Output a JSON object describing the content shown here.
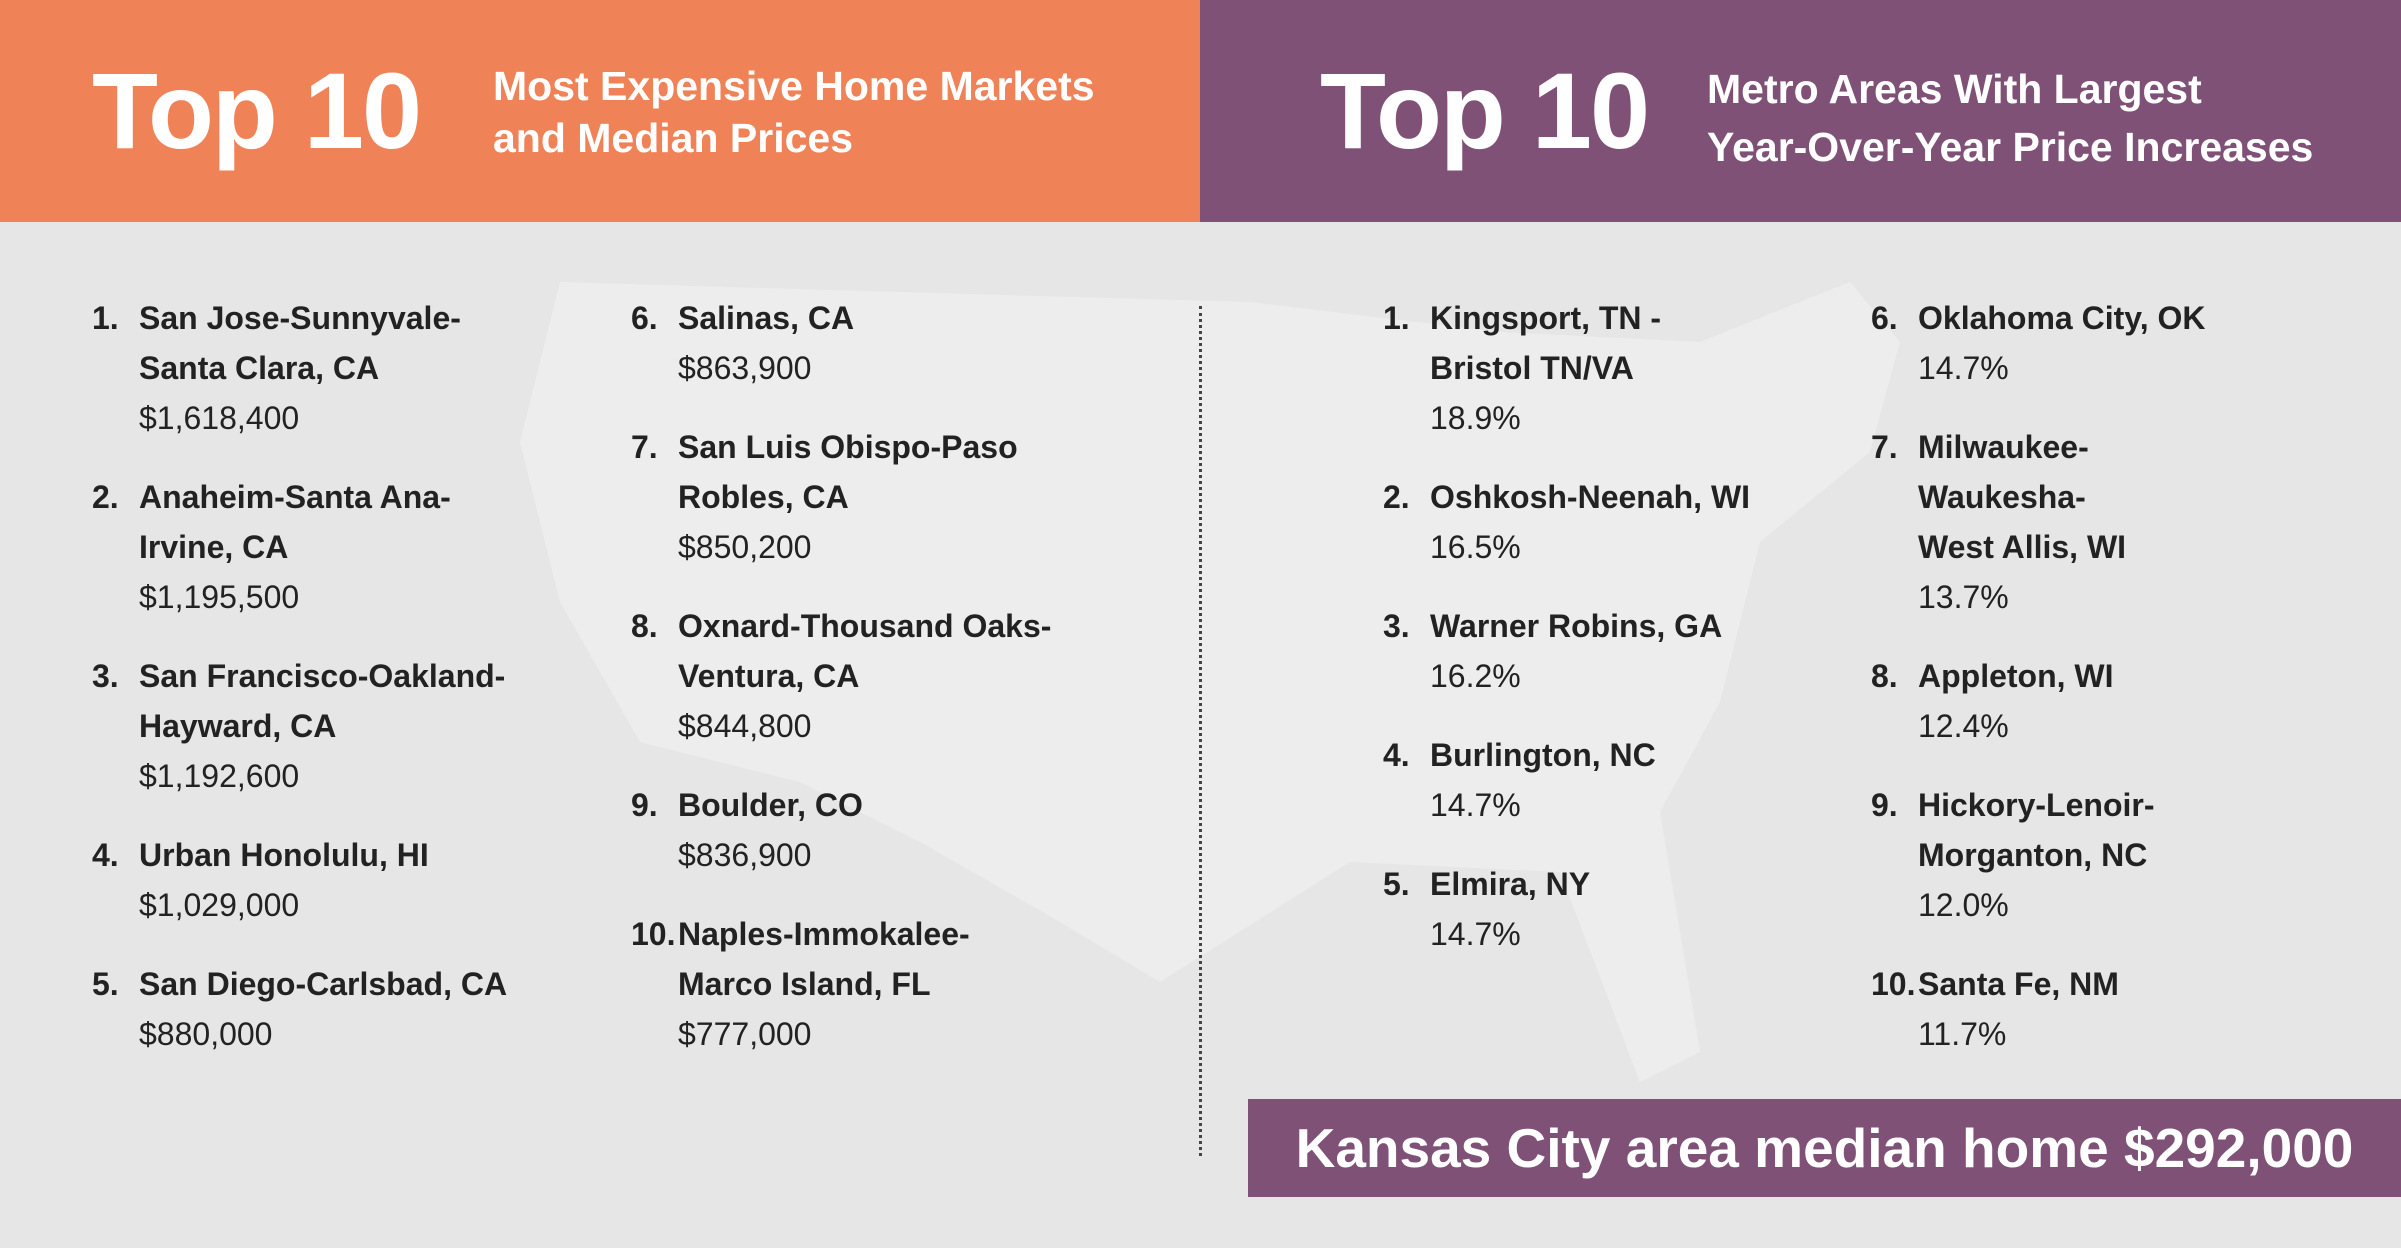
{
  "left_panel": {
    "heading": "Top 10",
    "subtitle": [
      "Most Expensive Home Markets",
      "and Median Prices"
    ],
    "columns": [
      [
        {
          "rank": "1.",
          "name": [
            "San Jose-Sunnyvale-",
            "Santa Clara, CA"
          ],
          "value": "$1,618,400"
        },
        {
          "rank": "2.",
          "name": [
            "Anaheim-Santa Ana-",
            "Irvine, CA"
          ],
          "value": "$1,195,500"
        },
        {
          "rank": "3.",
          "name": [
            "San Francisco-Oakland-",
            "Hayward, CA"
          ],
          "value": "$1,192,600"
        },
        {
          "rank": "4.",
          "name": [
            "Urban Honolulu, HI"
          ],
          "value": "$1,029,000"
        },
        {
          "rank": "5.",
          "name": [
            "San Diego-Carlsbad, CA"
          ],
          "value": "$880,000"
        }
      ],
      [
        {
          "rank": "6.",
          "name": [
            "Salinas, CA"
          ],
          "value": "$863,900"
        },
        {
          "rank": "7.",
          "name": [
            "San Luis Obispo-Paso",
            "Robles, CA"
          ],
          "value": "$850,200"
        },
        {
          "rank": "8.",
          "name": [
            "Oxnard-Thousand Oaks-",
            "Ventura, CA"
          ],
          "value": "$844,800"
        },
        {
          "rank": "9.",
          "name": [
            "Boulder, CO"
          ],
          "value": "$836,900"
        },
        {
          "rank": "10.",
          "name": [
            "Naples-Immokalee-",
            "Marco Island, FL"
          ],
          "value": "$777,000"
        }
      ]
    ]
  },
  "right_panel": {
    "heading": "Top 10",
    "subtitle": [
      "Metro Areas With Largest",
      "Year-Over-Year Price Increases"
    ],
    "columns": [
      [
        {
          "rank": "1.",
          "name": [
            "Kingsport, TN -",
            "Bristol TN/VA"
          ],
          "value": "18.9%"
        },
        {
          "rank": "2.",
          "name": [
            "Oshkosh-Neenah, WI"
          ],
          "value": "16.5%"
        },
        {
          "rank": "3.",
          "name": [
            "Warner Robins, GA"
          ],
          "value": "16.2%"
        },
        {
          "rank": "4.",
          "name": [
            "Burlington, NC"
          ],
          "value": "14.7%"
        },
        {
          "rank": "5.",
          "name": [
            "Elmira, NY"
          ],
          "value": "14.7%"
        }
      ],
      [
        {
          "rank": "6.",
          "name": [
            "Oklahoma City, OK"
          ],
          "value": "14.7%"
        },
        {
          "rank": "7.",
          "name": [
            "Milwaukee-",
            "Waukesha-",
            "West Allis, WI"
          ],
          "value": "13.7%"
        },
        {
          "rank": "8.",
          "name": [
            "Appleton, WI"
          ],
          "value": "12.4%"
        },
        {
          "rank": "9.",
          "name": [
            "Hickory-Lenoir-",
            "Morganton, NC"
          ],
          "value": "12.0%"
        },
        {
          "rank": "10.",
          "name": [
            "Santa Fe, NM"
          ],
          "value": "11.7%"
        }
      ]
    ]
  },
  "banner": "Kansas City area median home $292,000"
}
